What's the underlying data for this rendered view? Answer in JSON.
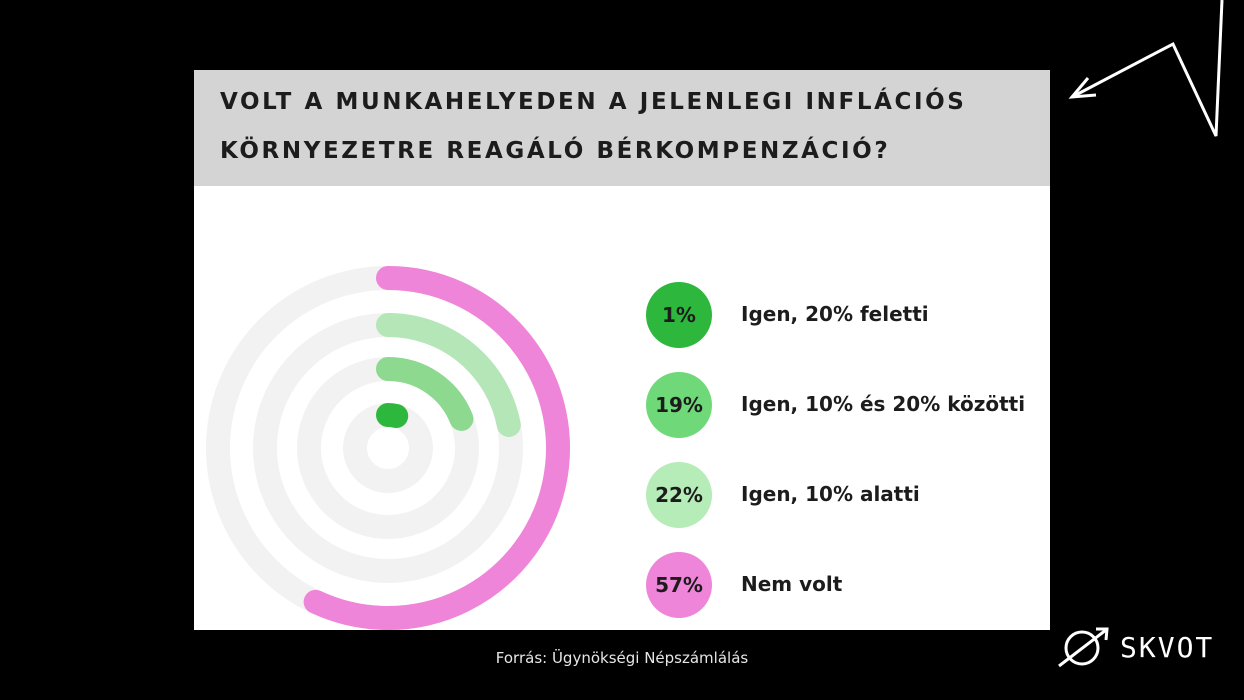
{
  "title": {
    "line1": "VOLT A MUNKAHELYEDEN A JELENLEGI INFLÁCIÓS",
    "line2": "KÖRNYEZETRE REAGÁLÓ BÉRKOMPENZÁCIÓ?"
  },
  "source": "Forrás: Ügynökségi Népszámlálás",
  "brand": {
    "name": "SKVOT"
  },
  "chart_data": {
    "type": "radial_bar",
    "title": "VOLT A MUNKAHELYEDEN A JELENLEGI INFLÁCIÓS KÖRNYEZETRE REAGÁLÓ BÉRKOMPENZÁCIÓ?",
    "track_color": "#f2f2f2",
    "categories": [
      "Igen, 20% feletti",
      "Igen, 10% és 20% közötti",
      "Igen, 10% alatti",
      "Nem volt"
    ],
    "values": [
      1,
      19,
      22,
      57
    ],
    "labels": [
      "1%",
      "19%",
      "22%",
      "57%"
    ],
    "colors": [
      "#2db83d",
      "#8cd98f",
      "#b5e6b8",
      "#ee85d9"
    ],
    "badge_colors": [
      "#2db83d",
      "#6fd97a",
      "#b5ecb8",
      "#ee85d9"
    ],
    "scale_max": 100
  }
}
